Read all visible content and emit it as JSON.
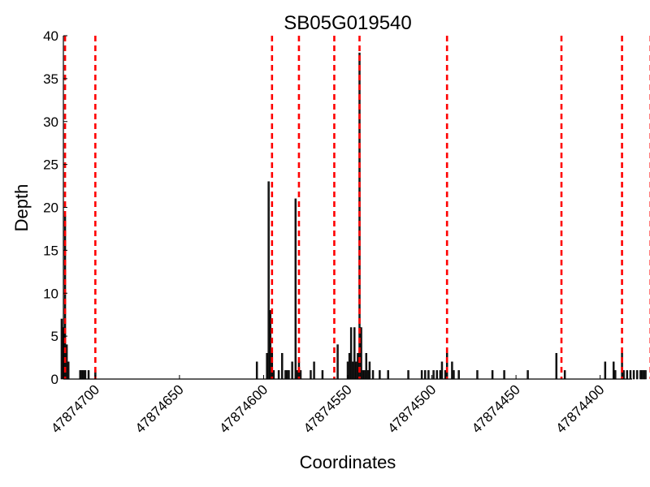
{
  "chart_data": {
    "type": "bar",
    "title": "SB05G019540",
    "xlabel": "Coordinates",
    "ylabel": "Depth",
    "xlim": [
      47874719,
      47874381
    ],
    "ylim": [
      0,
      40
    ],
    "x_ticks": [
      47874700,
      47874650,
      47874600,
      47874550,
      47874500,
      47874450,
      47874400
    ],
    "y_ticks": [
      0,
      5,
      10,
      15,
      20,
      25,
      30,
      35,
      40
    ],
    "grid": false,
    "colors": {
      "bar": "#1a1a1a",
      "bar_edge": "#000000",
      "boundary_line": "#ff0000"
    },
    "boundaries": [
      47874718,
      47874700,
      47874595,
      47874579,
      47874558,
      47874543,
      47874491,
      47874423,
      47874387,
      47874370
    ],
    "series": [
      {
        "x": [
          47874720,
          47874719,
          47874718,
          47874717,
          47874716,
          47874709,
          47874708,
          47874707,
          47874706,
          47874704,
          47874700,
          47874604,
          47874598,
          47874597,
          47874596,
          47874595,
          47874594,
          47874591,
          47874589,
          47874587,
          47874586,
          47874585,
          47874583,
          47874581,
          47874580,
          47874579,
          47874578,
          47874572,
          47874570,
          47874565,
          47874556,
          47874550,
          47874549,
          47874548,
          47874547,
          47874546,
          47874545,
          47874544,
          47874543,
          47874542,
          47874541,
          47874540,
          47874539,
          47874538,
          47874537,
          47874535,
          47874531,
          47874526,
          47874514,
          47874506,
          47874504,
          47874502,
          47874499,
          47874497,
          47874495,
          47874494,
          47874492,
          47874491,
          47874488,
          47874487,
          47874484,
          47874473,
          47874464,
          47874457,
          47874443,
          47874426,
          47874421,
          47874397,
          47874392,
          47874391,
          47874387,
          47874386,
          47874384,
          47874382,
          47874380,
          47874378,
          47874376,
          47874375,
          47874374,
          47874373
        ],
        "values": [
          7,
          6,
          19,
          4,
          2,
          1,
          1,
          1,
          1,
          1,
          1,
          2,
          3,
          23,
          8,
          3,
          1,
          1,
          3,
          1,
          1,
          1,
          2,
          21,
          1,
          2,
          1,
          1,
          2,
          1,
          4,
          2,
          3,
          6,
          2,
          6,
          2,
          3,
          38,
          6,
          1,
          1,
          3,
          1,
          2,
          1,
          1,
          1,
          1,
          1,
          1,
          1,
          1,
          1,
          1,
          2,
          1,
          3,
          2,
          1,
          1,
          1,
          1,
          1,
          1,
          3,
          1,
          2,
          2,
          1,
          3,
          1,
          1,
          1,
          1,
          1,
          1,
          1,
          1,
          1
        ]
      }
    ]
  }
}
